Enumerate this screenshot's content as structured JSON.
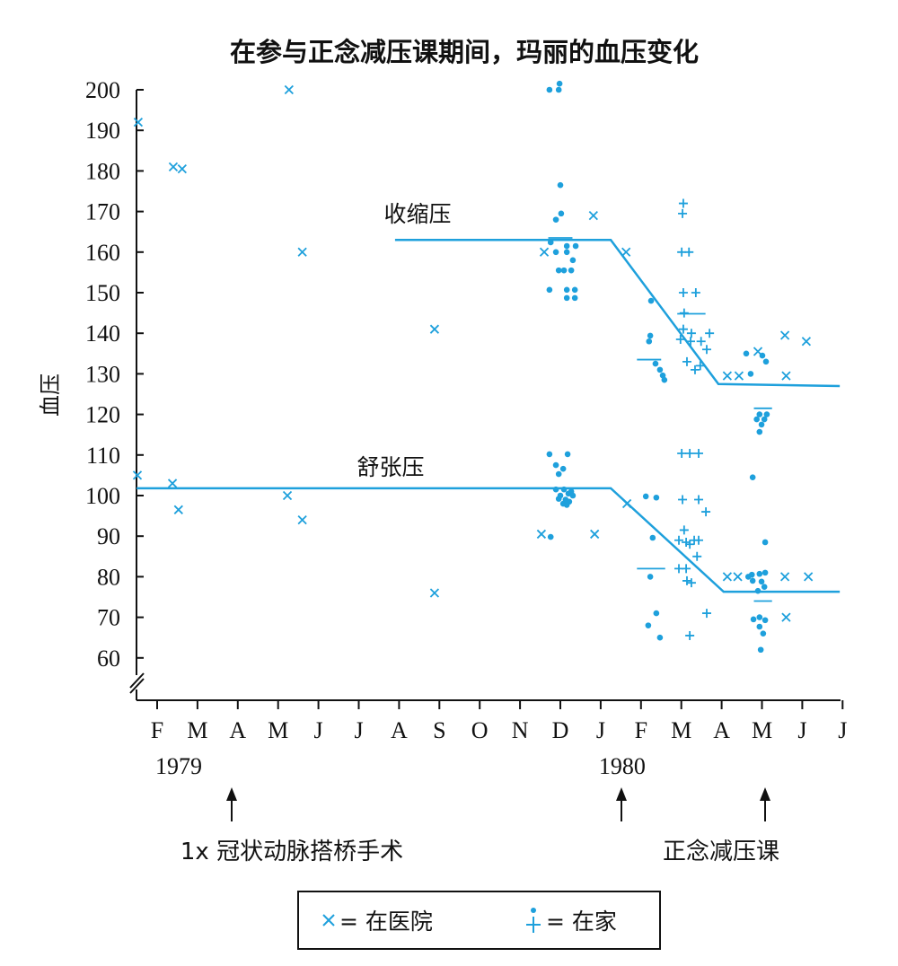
{
  "chart_data": {
    "type": "scatter",
    "title": "在参与正念减压课期间，玛丽的血压变化",
    "ylabel": "血压",
    "xlabel": "",
    "ylim": [
      60,
      200
    ],
    "xlim": [
      0.5,
      18
    ],
    "yticks": [
      200,
      190,
      180,
      170,
      160,
      150,
      140,
      130,
      120,
      110,
      100,
      90,
      80,
      70,
      60
    ],
    "xticks": [
      {
        "x": 1,
        "label": "F"
      },
      {
        "x": 2,
        "label": "M"
      },
      {
        "x": 3,
        "label": "A"
      },
      {
        "x": 4,
        "label": "M"
      },
      {
        "x": 5,
        "label": "J"
      },
      {
        "x": 6,
        "label": "J"
      },
      {
        "x": 7,
        "label": "A"
      },
      {
        "x": 8,
        "label": "S"
      },
      {
        "x": 9,
        "label": "O"
      },
      {
        "x": 10,
        "label": "N"
      },
      {
        "x": 11,
        "label": "D"
      },
      {
        "x": 12,
        "label": "J"
      },
      {
        "x": 13,
        "label": "F"
      },
      {
        "x": 14,
        "label": "M"
      },
      {
        "x": 15,
        "label": "A"
      },
      {
        "x": 16,
        "label": "M"
      },
      {
        "x": 17,
        "label": "J"
      },
      {
        "x": 18,
        "label": "J"
      }
    ],
    "year_labels": [
      {
        "x": 1,
        "label": "1979"
      },
      {
        "x": 12,
        "label": "1980"
      }
    ],
    "series": [
      {
        "name": "在医院",
        "marker": "x",
        "points": [
          [
            0.53,
            192
          ],
          [
            1.4,
            181
          ],
          [
            1.62,
            180.5
          ],
          [
            4.27,
            200
          ],
          [
            4.6,
            160
          ],
          [
            7.88,
            141
          ],
          [
            0.51,
            105
          ],
          [
            1.38,
            103
          ],
          [
            1.53,
            96.5
          ],
          [
            4.23,
            100
          ],
          [
            4.6,
            94
          ],
          [
            7.88,
            76
          ],
          [
            10.6,
            160
          ],
          [
            10.53,
            90.5
          ],
          [
            11.82,
            169
          ],
          [
            11.85,
            90.5
          ],
          [
            12.63,
            160
          ],
          [
            12.65,
            98
          ],
          [
            15.14,
            129.5
          ],
          [
            15.43,
            129.5
          ],
          [
            15.14,
            80
          ],
          [
            15.4,
            80
          ],
          [
            15.9,
            135.5
          ],
          [
            16.57,
            139.5
          ],
          [
            16.6,
            129.5
          ],
          [
            17.1,
            138
          ],
          [
            16.6,
            70
          ],
          [
            16.57,
            80
          ],
          [
            17.15,
            80
          ]
        ]
      },
      {
        "name": "在家 (dot)",
        "marker": "dot",
        "points": [
          [
            10.73,
            200
          ],
          [
            10.96,
            200
          ],
          [
            10.98,
            201.5
          ],
          [
            11.0,
            176.5
          ],
          [
            11.02,
            169.5
          ],
          [
            10.89,
            168
          ],
          [
            10.76,
            162.4
          ],
          [
            11.16,
            161.5
          ],
          [
            11.38,
            161.5
          ],
          [
            10.89,
            160
          ],
          [
            11.16,
            160
          ],
          [
            11.31,
            158
          ],
          [
            10.96,
            155.5
          ],
          [
            11.09,
            155.5
          ],
          [
            11.27,
            155.5
          ],
          [
            10.73,
            150.7
          ],
          [
            11.16,
            150.7
          ],
          [
            11.36,
            150.7
          ],
          [
            11.16,
            148.7
          ],
          [
            11.36,
            148.7
          ],
          [
            10.73,
            110.2
          ],
          [
            11.18,
            110.2
          ],
          [
            10.89,
            107.5
          ],
          [
            11.07,
            106.6
          ],
          [
            10.96,
            105.3
          ],
          [
            10.89,
            101.5
          ],
          [
            11.0,
            100
          ],
          [
            11.09,
            101.5
          ],
          [
            11.2,
            100.5
          ],
          [
            11.27,
            101
          ],
          [
            10.96,
            99.2
          ],
          [
            11.13,
            99
          ],
          [
            11.22,
            98.5
          ],
          [
            11.07,
            98
          ],
          [
            11.16,
            97.7
          ],
          [
            11.31,
            100
          ],
          [
            10.76,
            89.8
          ],
          [
            13.25,
            148
          ],
          [
            13.23,
            139.4
          ],
          [
            13.2,
            138
          ],
          [
            13.36,
            132.5
          ],
          [
            13.47,
            131
          ],
          [
            13.54,
            129.6
          ],
          [
            13.58,
            128.5
          ],
          [
            13.12,
            99.8
          ],
          [
            13.38,
            99.5
          ],
          [
            13.29,
            89.6
          ],
          [
            13.23,
            80
          ],
          [
            13.38,
            71
          ],
          [
            13.18,
            68
          ],
          [
            13.47,
            65
          ],
          [
            15.61,
            135
          ],
          [
            16.01,
            134.5
          ],
          [
            16.1,
            133
          ],
          [
            15.72,
            130
          ],
          [
            15.94,
            120
          ],
          [
            16.12,
            120
          ],
          [
            15.87,
            118.8
          ],
          [
            16.06,
            118.8
          ],
          [
            15.99,
            117.5
          ],
          [
            15.94,
            115.7
          ],
          [
            15.77,
            104.5
          ],
          [
            16.08,
            88.5
          ],
          [
            15.75,
            80.5
          ],
          [
            15.94,
            80.7
          ],
          [
            16.08,
            81
          ],
          [
            15.77,
            79
          ],
          [
            15.99,
            78.8
          ],
          [
            15.66,
            80
          ],
          [
            16.06,
            77.5
          ],
          [
            15.9,
            76.5
          ],
          [
            15.94,
            70
          ],
          [
            16.08,
            69.3
          ],
          [
            15.79,
            69.5
          ],
          [
            15.94,
            67.7
          ],
          [
            16.03,
            66
          ],
          [
            15.97,
            62
          ]
        ]
      },
      {
        "name": "在家 (plus)",
        "marker": "plus",
        "points": [
          [
            14.05,
            172
          ],
          [
            14.03,
            169.5
          ],
          [
            14.01,
            160
          ],
          [
            14.19,
            160
          ],
          [
            14.05,
            150
          ],
          [
            14.36,
            150
          ],
          [
            14.07,
            145
          ],
          [
            14.05,
            141
          ],
          [
            14.25,
            140
          ],
          [
            14.7,
            140
          ],
          [
            13.98,
            138.5
          ],
          [
            14.23,
            138
          ],
          [
            14.49,
            138
          ],
          [
            14.63,
            136
          ],
          [
            14.14,
            133
          ],
          [
            14.34,
            131
          ],
          [
            14.47,
            132
          ],
          [
            14.01,
            110.4
          ],
          [
            14.21,
            110.4
          ],
          [
            14.43,
            110.4
          ],
          [
            14.03,
            99
          ],
          [
            14.43,
            99
          ],
          [
            14.61,
            96
          ],
          [
            14.07,
            91.5
          ],
          [
            13.94,
            89
          ],
          [
            14.12,
            88.5
          ],
          [
            14.32,
            89
          ],
          [
            14.43,
            89
          ],
          [
            14.21,
            88
          ],
          [
            13.94,
            82
          ],
          [
            14.12,
            82
          ],
          [
            14.14,
            79
          ],
          [
            14.25,
            78.5
          ],
          [
            14.39,
            85
          ],
          [
            14.21,
            65.5
          ],
          [
            14.63,
            71
          ]
        ]
      },
      {
        "name": "平均",
        "marker": "dash",
        "points": [
          [
            10.7,
            11.3,
            163.5
          ],
          [
            12.9,
            13.5,
            133.5
          ],
          [
            13.9,
            14.6,
            144.8
          ],
          [
            12.9,
            13.6,
            82
          ],
          [
            15.8,
            16.25,
            121.5
          ],
          [
            15.8,
            16.25,
            74
          ]
        ]
      }
    ],
    "trend_lines": [
      {
        "name": "收缩压",
        "points": [
          [
            6.9,
            163
          ],
          [
            12.25,
            163
          ],
          [
            14.92,
            127.5
          ],
          [
            17.93,
            127
          ]
        ]
      },
      {
        "name": "舒张压",
        "points": [
          [
            0.49,
            101.8
          ],
          [
            12.25,
            101.8
          ],
          [
            15.05,
            76.3
          ],
          [
            17.93,
            76.3
          ]
        ]
      }
    ],
    "line_labels": {
      "systolic": "收缩压",
      "diastolic": "舒张压"
    },
    "annotations": [
      {
        "x": 3,
        "label": "1x 冠状动脉搭桥手术"
      },
      {
        "x": 13.4,
        "label": "正念减压课"
      },
      {
        "x": 16,
        "label": ""
      }
    ],
    "legend": {
      "placement": "bottom",
      "hospital_label": "= 在医院",
      "home_label": "= 在家"
    },
    "color": "#1ea0dc"
  }
}
